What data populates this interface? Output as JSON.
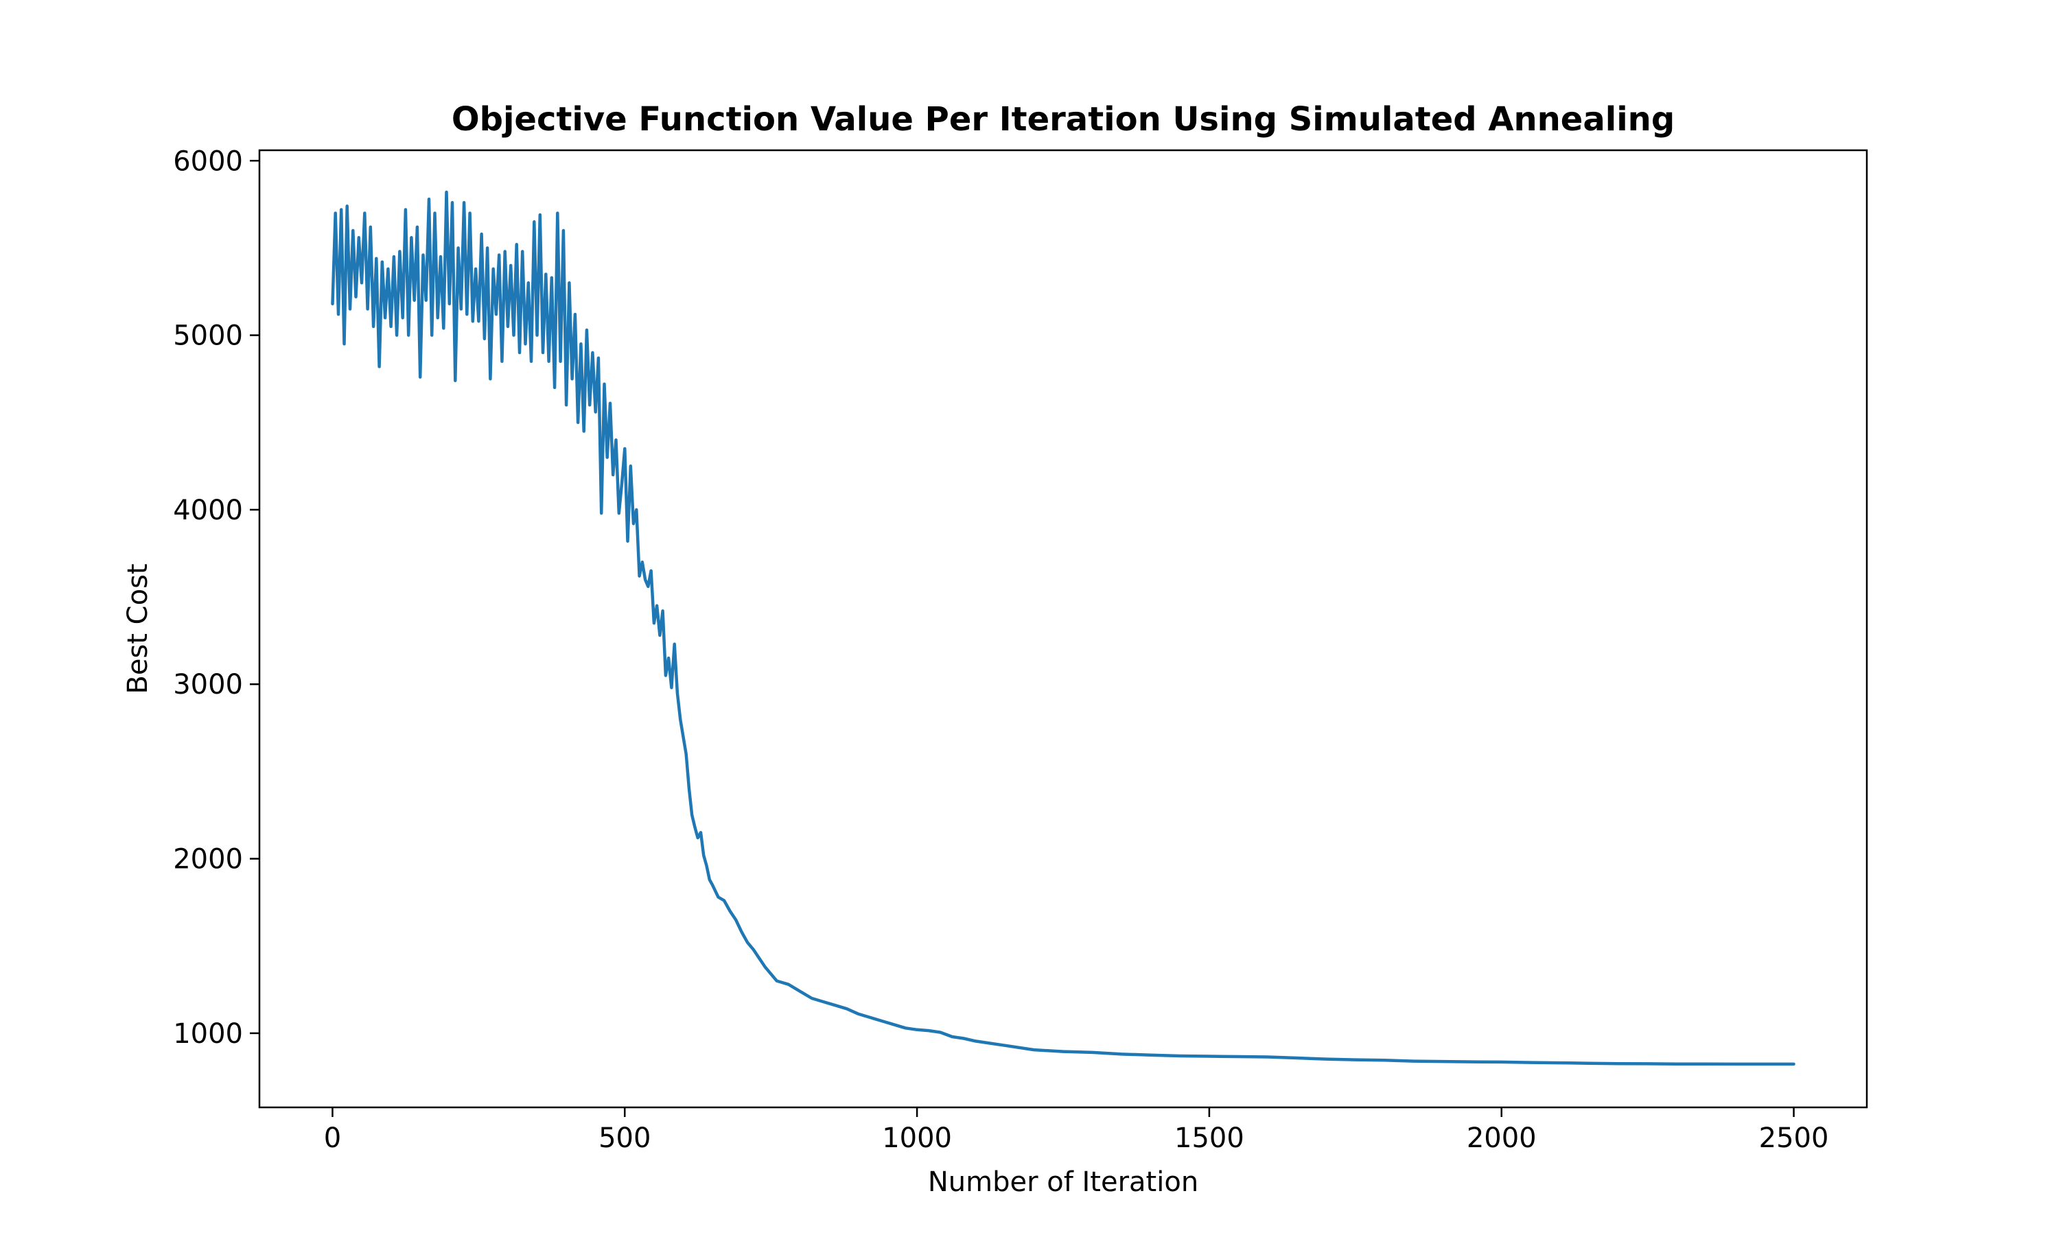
{
  "chart_data": {
    "type": "line",
    "title": "Objective Function Value Per Iteration Using Simulated Annealing",
    "xlabel": "Number of Iteration",
    "ylabel": "Best Cost",
    "xlim": [
      -125,
      2625
    ],
    "ylim": [
      575,
      6060
    ],
    "xticks": [
      0,
      500,
      1000,
      1500,
      2000,
      2500
    ],
    "yticks": [
      1000,
      2000,
      3000,
      4000,
      5000,
      6000
    ],
    "grid": false,
    "legend": "none",
    "series": [
      {
        "color": "#1f77b4",
        "x": [
          0,
          5,
          10,
          15,
          20,
          25,
          30,
          35,
          40,
          45,
          50,
          55,
          60,
          65,
          70,
          75,
          80,
          85,
          90,
          95,
          100,
          105,
          110,
          115,
          120,
          125,
          130,
          135,
          140,
          145,
          150,
          155,
          160,
          165,
          170,
          175,
          180,
          185,
          190,
          195,
          200,
          205,
          210,
          215,
          220,
          225,
          230,
          235,
          240,
          245,
          250,
          255,
          260,
          265,
          270,
          275,
          280,
          285,
          290,
          295,
          300,
          305,
          310,
          315,
          320,
          325,
          330,
          335,
          340,
          345,
          350,
          355,
          360,
          365,
          370,
          375,
          380,
          385,
          390,
          395,
          400,
          405,
          410,
          415,
          420,
          425,
          430,
          435,
          440,
          445,
          450,
          455,
          460,
          465,
          470,
          475,
          480,
          485,
          490,
          495,
          500,
          505,
          510,
          515,
          520,
          525,
          530,
          535,
          540,
          545,
          550,
          555,
          560,
          565,
          570,
          575,
          580,
          585,
          590,
          595,
          600,
          605,
          610,
          615,
          620,
          625,
          630,
          635,
          640,
          645,
          650,
          660,
          670,
          680,
          690,
          700,
          710,
          720,
          730,
          740,
          750,
          760,
          780,
          800,
          820,
          840,
          860,
          880,
          900,
          920,
          940,
          960,
          980,
          1000,
          1020,
          1040,
          1060,
          1080,
          1100,
          1150,
          1200,
          1250,
          1300,
          1350,
          1400,
          1450,
          1500,
          1550,
          1600,
          1650,
          1700,
          1750,
          1800,
          1850,
          1900,
          1950,
          2000,
          2050,
          2100,
          2150,
          2200,
          2250,
          2300,
          2350,
          2400,
          2450,
          2500
        ],
        "y": [
          5180,
          5700,
          5120,
          5720,
          4950,
          5740,
          5150,
          5600,
          5220,
          5560,
          5300,
          5700,
          5150,
          5620,
          5050,
          5440,
          4820,
          5420,
          5100,
          5380,
          5050,
          5450,
          5000,
          5480,
          5100,
          5720,
          5000,
          5560,
          5200,
          5620,
          4760,
          5460,
          5200,
          5780,
          5000,
          5700,
          5100,
          5450,
          5040,
          5820,
          5180,
          5760,
          4740,
          5500,
          5150,
          5760,
          5120,
          5700,
          5080,
          5380,
          5080,
          5580,
          4980,
          5500,
          4750,
          5380,
          5120,
          5460,
          4850,
          5480,
          5050,
          5400,
          5000,
          5520,
          4900,
          5480,
          4950,
          5300,
          4850,
          5650,
          5000,
          5690,
          4900,
          5350,
          4850,
          5330,
          4700,
          5700,
          4850,
          5600,
          4600,
          5300,
          4750,
          5120,
          4500,
          4950,
          4450,
          5030,
          4600,
          4900,
          4560,
          4870,
          3980,
          4720,
          4300,
          4610,
          4200,
          4400,
          3980,
          4150,
          4350,
          3820,
          4250,
          3920,
          4000,
          3620,
          3700,
          3600,
          3560,
          3650,
          3350,
          3450,
          3280,
          3420,
          3050,
          3150,
          2980,
          3230,
          2950,
          2800,
          2700,
          2600,
          2400,
          2250,
          2180,
          2120,
          2150,
          2020,
          1960,
          1880,
          1850,
          1780,
          1760,
          1700,
          1650,
          1580,
          1520,
          1480,
          1430,
          1380,
          1340,
          1300,
          1280,
          1240,
          1200,
          1180,
          1160,
          1140,
          1110,
          1090,
          1070,
          1050,
          1030,
          1020,
          1015,
          1005,
          980,
          970,
          955,
          930,
          905,
          895,
          890,
          880,
          875,
          870,
          868,
          866,
          864,
          858,
          852,
          848,
          845,
          840,
          838,
          836,
          835,
          832,
          830,
          828,
          826,
          825,
          824,
          824,
          823,
          823,
          823
        ]
      }
    ]
  }
}
